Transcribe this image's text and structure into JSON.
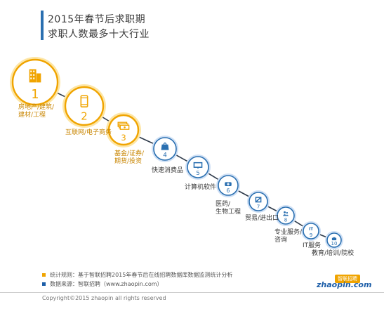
{
  "page": {
    "title_line1": "2015年春节后求职期",
    "title_line2": "求职人数最多十大行业",
    "notes": [
      {
        "text": "统计规则：基于智联招聘2015年春节后在线招聘数据库数据监测统计分析",
        "color": "#f0a400"
      },
      {
        "text": "数据来源：智联招聘（www.zhaopin.com）",
        "color": "#1d5ea8"
      }
    ],
    "copyright": "Copyright©2015 zhaopin all rights reserved",
    "logo": {
      "top": "智联招聘",
      "bottom": "zhaopin.com"
    }
  },
  "colors": {
    "gold": "#f0a400",
    "gold_text": "#c88500",
    "blue": "#2a6fb0",
    "blue_light": "#cfe0f5",
    "gold_light": "#fde6a6"
  },
  "chart_data": {
    "type": "ranking",
    "title": "2015年春节后求职期 求职人数最多十大行业",
    "items": [
      {
        "rank": "1",
        "label": [
          "房地产/建筑/",
          "建材/工程"
        ],
        "icon": "building-icon"
      },
      {
        "rank": "2",
        "label": [
          "互联网/电子商务"
        ],
        "icon": "phone-icon"
      },
      {
        "rank": "3",
        "label": [
          "基金/证券/",
          "期货/投资"
        ],
        "icon": "money-icon"
      },
      {
        "rank": "4",
        "label": [
          "快速消费品"
        ],
        "icon": "shopping-bag-icon"
      },
      {
        "rank": "5",
        "label": [
          "计算机软件"
        ],
        "icon": "monitor-icon"
      },
      {
        "rank": "6",
        "label": [
          "医药/",
          "生物工程"
        ],
        "icon": "medical-kit-icon"
      },
      {
        "rank": "7",
        "label": [
          "贸易/进出口"
        ],
        "icon": "trade-icon"
      },
      {
        "rank": "8",
        "label": [
          "专业服务/",
          "咨询"
        ],
        "icon": "people-icon"
      },
      {
        "rank": "9",
        "label": [
          "IT服务"
        ],
        "icon": "it-icon"
      },
      {
        "rank": "10",
        "label": [
          "教育/培训/院校"
        ],
        "icon": "education-icon"
      }
    ]
  }
}
